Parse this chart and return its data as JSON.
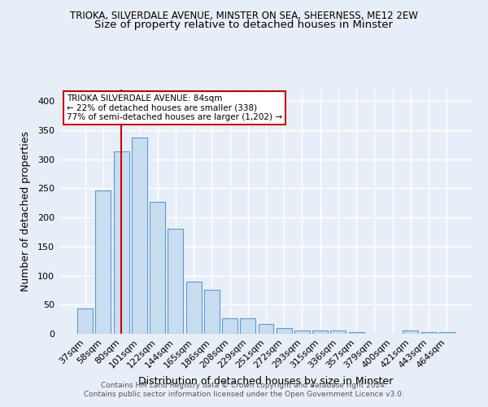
{
  "title_line1": "TRIOKA, SILVERDALE AVENUE, MINSTER ON SEA, SHEERNESS, ME12 2EW",
  "title_line2": "Size of property relative to detached houses in Minster",
  "xlabel": "Distribution of detached houses by size in Minster",
  "ylabel": "Number of detached properties",
  "categories": [
    "37sqm",
    "58sqm",
    "80sqm",
    "101sqm",
    "122sqm",
    "144sqm",
    "165sqm",
    "186sqm",
    "208sqm",
    "229sqm",
    "251sqm",
    "272sqm",
    "293sqm",
    "315sqm",
    "336sqm",
    "357sqm",
    "379sqm",
    "400sqm",
    "421sqm",
    "443sqm",
    "464sqm"
  ],
  "values": [
    43,
    246,
    313,
    338,
    227,
    180,
    90,
    75,
    27,
    27,
    17,
    10,
    5,
    6,
    5,
    3,
    0,
    0,
    5,
    3,
    3
  ],
  "bar_color": "#c9ddf0",
  "bar_edge_color": "#5b9bd5",
  "vline_x_index": 2,
  "vline_color": "#cc0000",
  "annotation_title": "TRIOKA SILVERDALE AVENUE: 84sqm",
  "annotation_line2": "← 22% of detached houses are smaller (338)",
  "annotation_line3": "77% of semi-detached houses are larger (1,202) →",
  "annotation_box_color": "#ffffff",
  "annotation_box_edge": "#cc0000",
  "ylim": [
    0,
    420
  ],
  "yticks": [
    0,
    50,
    100,
    150,
    200,
    250,
    300,
    350,
    400
  ],
  "footer_line1": "Contains HM Land Registry data © Crown copyright and database right 2024.",
  "footer_line2": "Contains public sector information licensed under the Open Government Licence v3.0.",
  "bg_color": "#e8eef8",
  "grid_color": "#ffffff",
  "title_fontsize": 8.5,
  "subtitle_fontsize": 9.5
}
